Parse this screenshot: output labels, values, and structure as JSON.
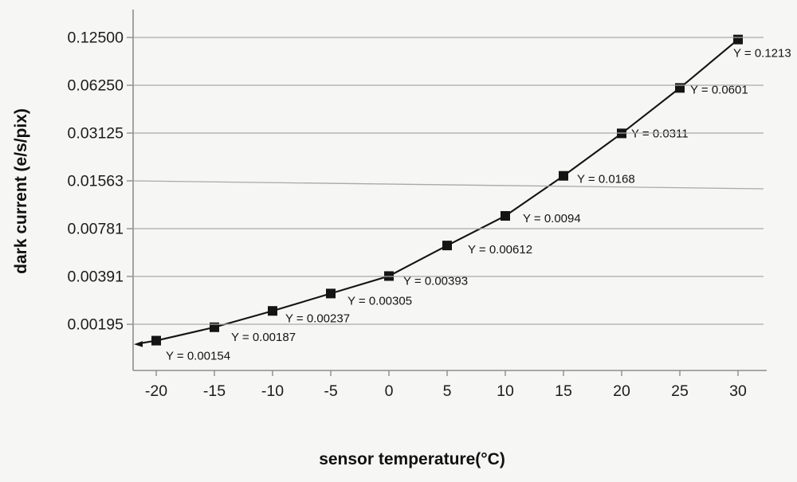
{
  "chart_data": {
    "type": "line",
    "title": "",
    "xlabel": "sensor temperature(°C)",
    "ylabel": "dark current (e/s/pix)",
    "x": [
      -20,
      -15,
      -10,
      -5,
      0,
      5,
      10,
      15,
      20,
      25,
      30
    ],
    "y": [
      0.00154,
      0.00187,
      0.00237,
      0.00305,
      0.00393,
      0.00612,
      0.0094,
      0.0168,
      0.0311,
      0.0601,
      0.1213
    ],
    "point_labels": [
      "Y = 0.00154",
      "Y = 0.00187",
      "Y = 0.00237",
      "Y = 0.00305",
      "Y = 0.00393",
      "Y = 0.00612",
      "Y = 0.0094",
      "Y = 0.0168",
      "Y = 0.0311",
      "Y = 0.0601",
      "Y = 0.1213"
    ],
    "x_tick_labels": [
      "-20",
      "-15",
      "-10",
      "-5",
      "0",
      "5",
      "10",
      "15",
      "20",
      "25",
      "30"
    ],
    "y_tick_labels": [
      "0.12500",
      "0.06250",
      "0.03125",
      "0.01563",
      "0.00781",
      "0.00391",
      "0.00195"
    ],
    "y_tick_values": [
      0.125,
      0.0625,
      0.03125,
      0.015625,
      0.0078125,
      0.00390625,
      0.001953125
    ],
    "y_scale": "log2",
    "x_range": [
      -20,
      30
    ],
    "grid": "horizontal-only",
    "legend": "none",
    "marker": "black-square",
    "line_start_decoration": "left-arrow",
    "colors": {
      "background": "#f6f6f4",
      "gridline": "#a9a9a9",
      "axis": "#8d8d8d",
      "series": "#141414",
      "text": "#1c1c1c"
    }
  }
}
